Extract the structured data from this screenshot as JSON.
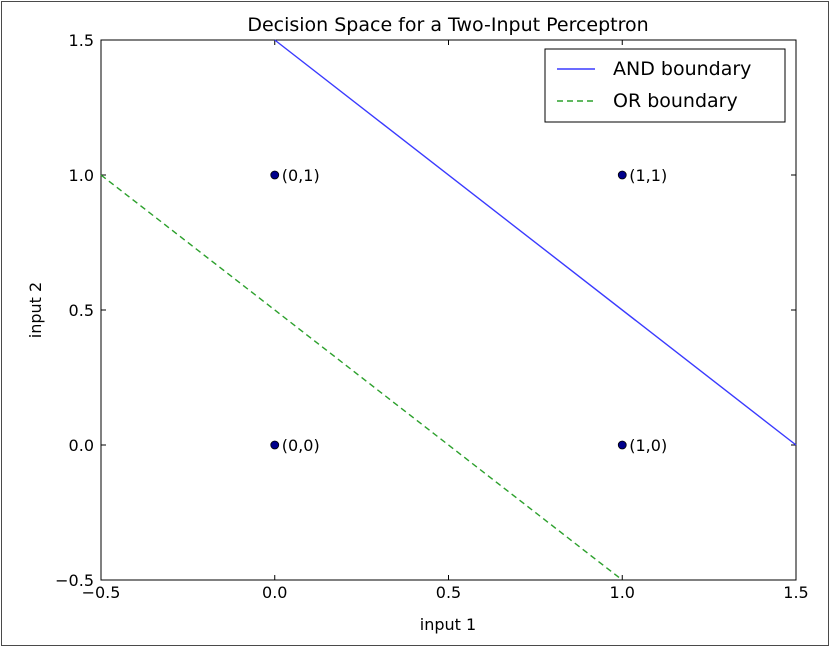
{
  "chart_data": {
    "type": "scatter",
    "title": "Decision Space for a Two-Input Perceptron",
    "xlabel": "input 1",
    "ylabel": "input 2",
    "xlim": [
      -0.5,
      1.5
    ],
    "ylim": [
      -0.5,
      1.5
    ],
    "xticks": [
      -0.5,
      0.0,
      0.5,
      1.0,
      1.5
    ],
    "yticks": [
      -0.5,
      0.0,
      0.5,
      1.0,
      1.5
    ],
    "xtick_labels": [
      "−0.5",
      "0.0",
      "0.5",
      "1.0",
      "1.5"
    ],
    "ytick_labels": [
      "−0.5",
      "0.0",
      "0.5",
      "1.0",
      "1.5"
    ],
    "grid": false,
    "legend_position": "top-right",
    "points": [
      {
        "x": 0,
        "y": 0,
        "label": "(0,0)"
      },
      {
        "x": 0,
        "y": 1,
        "label": "(0,1)"
      },
      {
        "x": 1,
        "y": 0,
        "label": "(1,0)"
      },
      {
        "x": 1,
        "y": 1,
        "label": "(1,1)"
      }
    ],
    "point_color": "#00008b",
    "series": [
      {
        "name": "AND boundary",
        "style": "solid",
        "color": "#3a3aff",
        "x": [
          0,
          1.5
        ],
        "y": [
          1.5,
          0
        ]
      },
      {
        "name": "OR boundary",
        "style": "dashed",
        "color": "#2ca02c",
        "x": [
          -0.5,
          1.0
        ],
        "y": [
          1.0,
          -0.5
        ]
      }
    ]
  }
}
